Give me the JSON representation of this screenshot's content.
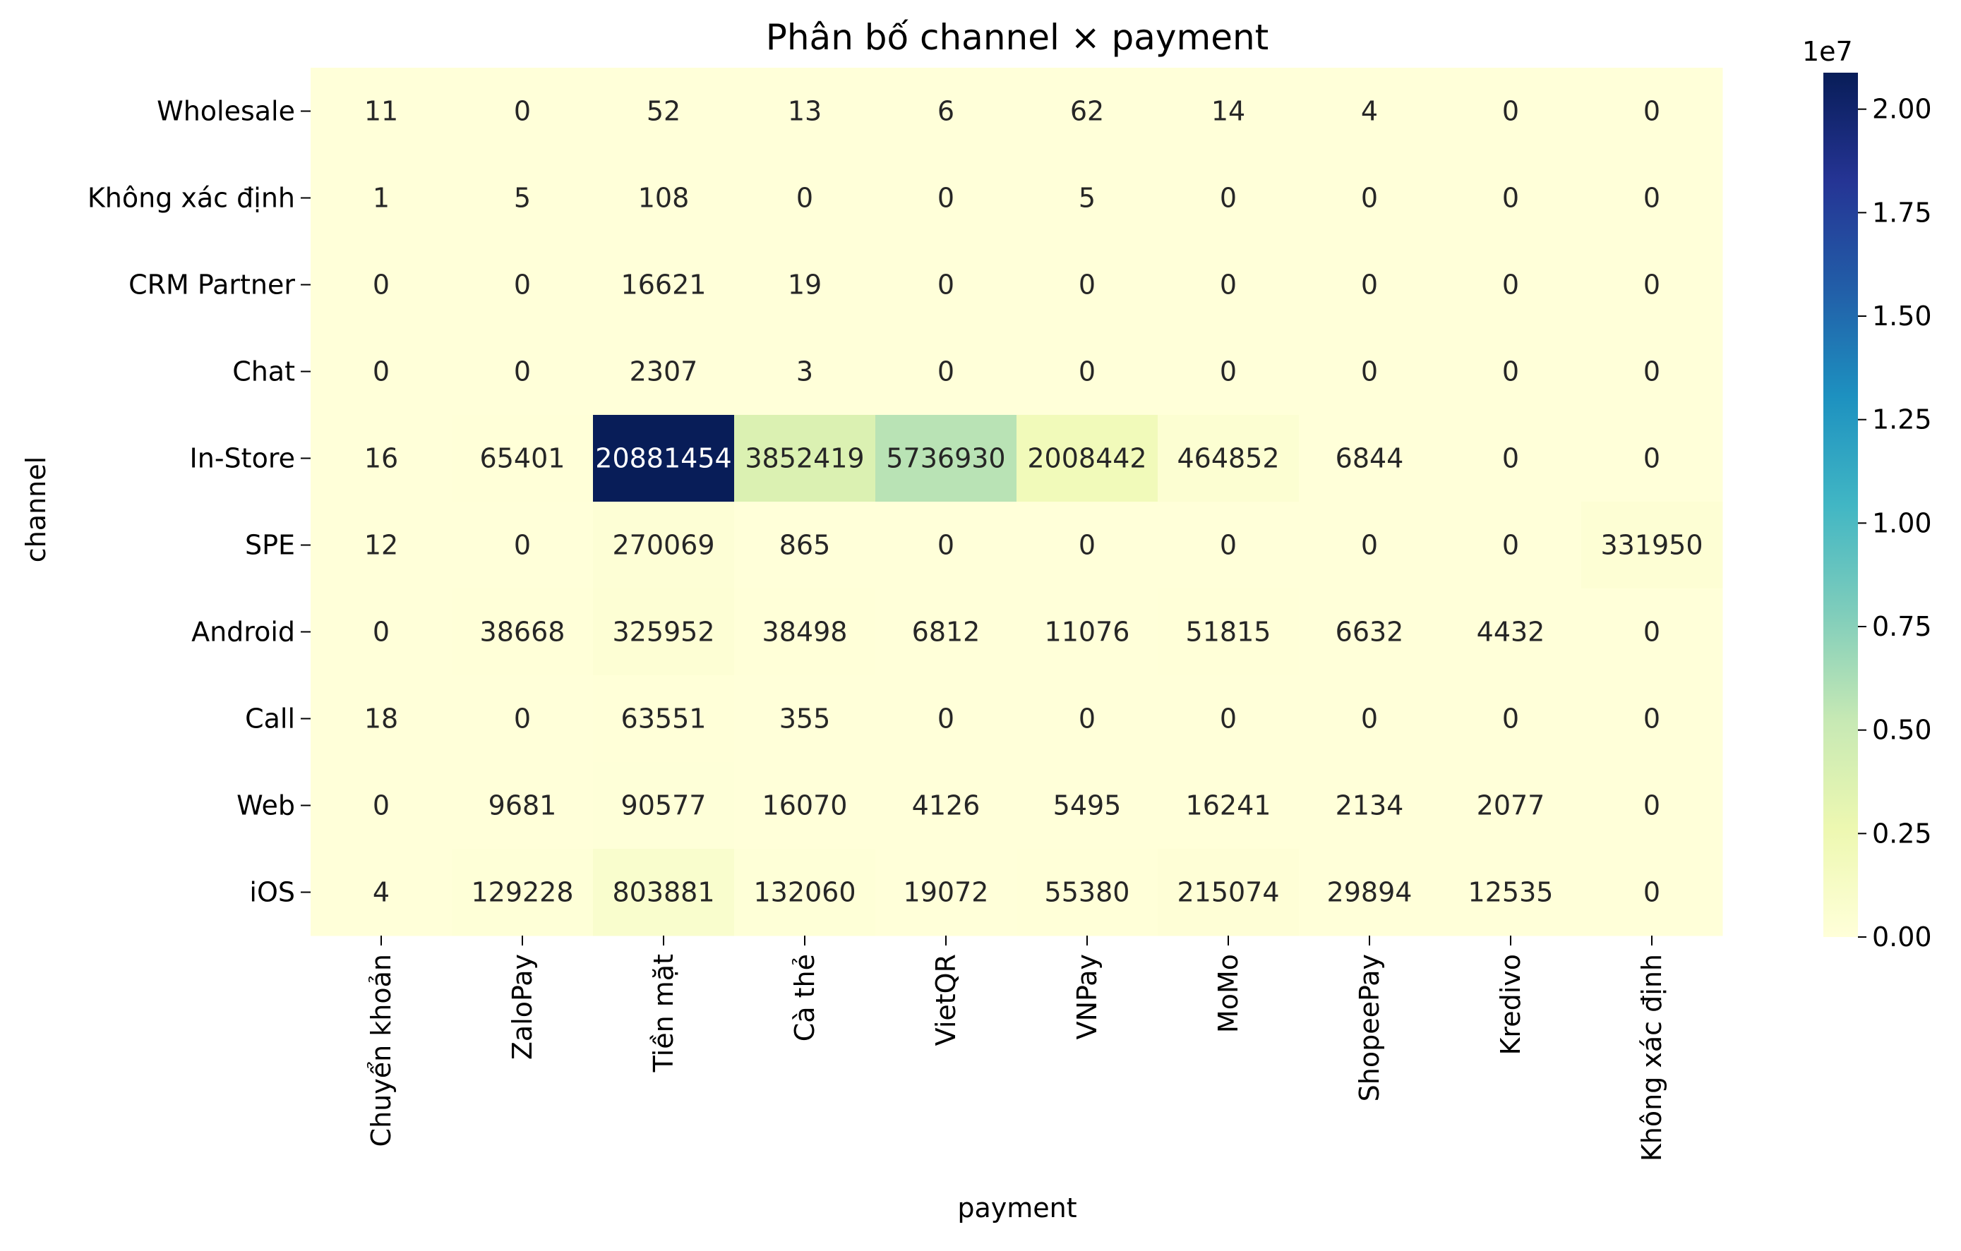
{
  "chart_data": {
    "type": "heatmap",
    "title": "Phân bố channel × payment",
    "xlabel": "payment",
    "ylabel": "channel",
    "x_categories": [
      "Chuyển khoản",
      "ZaloPay",
      "Tiền mặt",
      "Cà thẻ",
      "VietQR",
      "VNPay",
      "MoMo",
      "ShopeePay",
      "Kredivo",
      "Không xác định"
    ],
    "y_categories": [
      "Wholesale",
      "Không xác định",
      "CRM Partner",
      "Chat",
      "In-Store",
      "SPE",
      "Android",
      "Call",
      "Web",
      "iOS"
    ],
    "values": [
      [
        11,
        0,
        52,
        13,
        6,
        62,
        14,
        4,
        0,
        0
      ],
      [
        1,
        5,
        108,
        0,
        0,
        5,
        0,
        0,
        0,
        0
      ],
      [
        0,
        0,
        16621,
        19,
        0,
        0,
        0,
        0,
        0,
        0
      ],
      [
        0,
        0,
        2307,
        3,
        0,
        0,
        0,
        0,
        0,
        0
      ],
      [
        16,
        65401,
        20881454,
        3852419,
        5736930,
        2008442,
        464852,
        6844,
        0,
        0
      ],
      [
        12,
        0,
        270069,
        865,
        0,
        0,
        0,
        0,
        0,
        331950
      ],
      [
        0,
        38668,
        325952,
        38498,
        6812,
        11076,
        51815,
        6632,
        4432,
        0
      ],
      [
        18,
        0,
        63551,
        355,
        0,
        0,
        0,
        0,
        0,
        0
      ],
      [
        0,
        9681,
        90577,
        16070,
        4126,
        5495,
        16241,
        2134,
        2077,
        0
      ],
      [
        4,
        129228,
        803881,
        132060,
        19072,
        55380,
        215074,
        29894,
        12535,
        0
      ]
    ],
    "colormap": "YlGnBu",
    "colorbar": {
      "min": 0,
      "max": 20881454,
      "scale_label": "1e7",
      "ticks": [
        0,
        0.25,
        0.5,
        0.75,
        1.0,
        1.25,
        1.5,
        1.75,
        2.0
      ],
      "tick_labels": [
        "0.00",
        "0.25",
        "0.50",
        "0.75",
        "1.00",
        "1.25",
        "1.50",
        "1.75",
        "2.00"
      ]
    }
  }
}
